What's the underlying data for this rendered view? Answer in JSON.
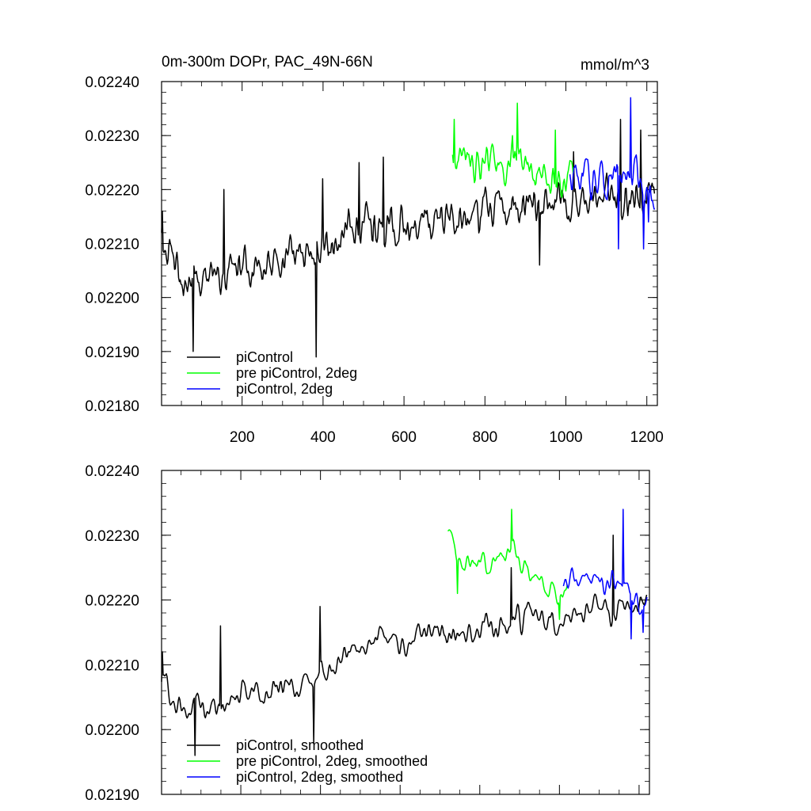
{
  "chart_data": [
    {
      "type": "line",
      "title": "0m-300m DOPr, PAC_49N-66N",
      "units": "mmol/m^3",
      "xlim": [
        1,
        1226
      ],
      "ylim": [
        0.0218,
        0.0224
      ],
      "xticks": [
        200,
        400,
        600,
        800,
        1000,
        1200
      ],
      "xtick_labels": [
        "200",
        "400",
        "600",
        "800",
        "1000",
        "1200"
      ],
      "yticks": [
        0.0218,
        0.0219,
        0.022,
        0.0221,
        0.0222,
        0.0223,
        0.0224
      ],
      "ytick_labels": [
        "0.02180",
        "0.02190",
        "0.02200",
        "0.02210",
        "0.02220",
        "0.02230",
        "0.02240"
      ],
      "legend": [
        "piControl",
        "pre piControl, 2deg",
        "piControl, 2deg"
      ],
      "legend_position": "bottom-left",
      "series": [
        {
          "name": "piControl",
          "color": "#000000",
          "x": [
            1,
            50,
            100,
            150,
            200,
            250,
            300,
            350,
            400,
            450,
            500,
            550,
            600,
            650,
            700,
            750,
            800,
            850,
            900,
            950,
            1000,
            1050,
            1100,
            1150,
            1200,
            1220
          ],
          "values": [
            0.02212,
            0.02202,
            0.02204,
            0.02203,
            0.02206,
            0.02205,
            0.02207,
            0.02207,
            0.02209,
            0.02211,
            0.02213,
            0.02214,
            0.02213,
            0.02215,
            0.02215,
            0.02214,
            0.02216,
            0.02216,
            0.02217,
            0.02218,
            0.02217,
            0.02218,
            0.02219,
            0.02218,
            0.02219,
            0.0222
          ],
          "amplitude": 4.5e-05,
          "spikes": [
            [
              4,
              0.02216
            ],
            [
              80,
              0.0219
            ],
            [
              155,
              0.0222
            ],
            [
              383,
              0.02189
            ],
            [
              400,
              0.02222
            ],
            [
              490,
              0.02225
            ],
            [
              550,
              0.02226
            ],
            [
              935,
              0.02206
            ],
            [
              1020,
              0.02227
            ],
            [
              1135,
              0.02233
            ],
            [
              1185,
              0.02231
            ]
          ]
        },
        {
          "name": "pre piControl, 2deg",
          "color": "#00ff00",
          "x": [
            720,
            760,
            800,
            840,
            880,
            920,
            960,
            1000,
            1020
          ],
          "values": [
            0.02226,
            0.02225,
            0.02224,
            0.02224,
            0.02226,
            0.02224,
            0.02223,
            0.0222,
            0.02222
          ],
          "amplitude": 4e-05,
          "spikes": [
            [
              725,
              0.02233
            ],
            [
              880,
              0.02236
            ],
            [
              868,
              0.0223
            ],
            [
              975,
              0.02231
            ]
          ]
        },
        {
          "name": "piControl, 2deg",
          "color": "#0000ff",
          "x": [
            1010,
            1060,
            1110,
            1160,
            1200,
            1220
          ],
          "values": [
            0.02222,
            0.02222,
            0.02222,
            0.02223,
            0.02221,
            0.0222
          ],
          "amplitude": 4e-05,
          "spikes": [
            [
              1160,
              0.02237
            ],
            [
              1130,
              0.02209
            ],
            [
              1192,
              0.02209
            ],
            [
              1205,
              0.02214
            ]
          ]
        }
      ]
    },
    {
      "type": "line",
      "title": "",
      "units": "",
      "xlim": [
        1,
        1226
      ],
      "ylim": [
        0.0219,
        0.0224
      ],
      "xticks": [
        200,
        400,
        600,
        800,
        1000,
        1200
      ],
      "xtick_labels": [],
      "yticks": [
        0.0219,
        0.022,
        0.0221,
        0.0222,
        0.0223,
        0.0224
      ],
      "ytick_labels": [
        "0.02190",
        "0.02200",
        "0.02210",
        "0.02220",
        "0.02230",
        "0.02240"
      ],
      "legend": [
        "piControl, smoothed",
        "pre piControl, 2deg, smoothed",
        "piControl, 2deg, smoothed"
      ],
      "legend_position": "bottom-left",
      "series": [
        {
          "name": "piControl, smoothed",
          "color": "#000000",
          "x": [
            1,
            50,
            100,
            150,
            200,
            250,
            300,
            350,
            400,
            450,
            500,
            550,
            600,
            650,
            700,
            750,
            800,
            850,
            900,
            950,
            1000,
            1050,
            1100,
            1150,
            1200,
            1220
          ],
          "values": [
            0.02208,
            0.02203,
            0.02204,
            0.02203,
            0.02206,
            0.02205,
            0.02207,
            0.02207,
            0.02209,
            0.02211,
            0.02213,
            0.02214,
            0.02213,
            0.02215,
            0.02215,
            0.02214,
            0.02216,
            0.02216,
            0.02217,
            0.02218,
            0.02217,
            0.02218,
            0.02219,
            0.02218,
            0.02219,
            0.0222
          ],
          "amplitude": 3e-05,
          "spikes": [
            [
              4,
              0.02212
            ],
            [
              85,
              0.02196
            ],
            [
              150,
              0.02216
            ],
            [
              383,
              0.02198
            ],
            [
              400,
              0.02219
            ],
            [
              880,
              0.02225
            ],
            [
              1135,
              0.0223
            ]
          ]
        },
        {
          "name": "pre piControl, 2deg, smoothed",
          "color": "#00ff00",
          "x": [
            720,
            760,
            800,
            840,
            880,
            920,
            960,
            1000,
            1020
          ],
          "values": [
            0.02231,
            0.02225,
            0.02226,
            0.02225,
            0.02228,
            0.02224,
            0.02223,
            0.0222,
            0.02222
          ],
          "amplitude": 2.5e-05,
          "spikes": [
            [
              745,
              0.02221
            ],
            [
              880,
              0.02234
            ],
            [
              1000,
              0.02217
            ]
          ]
        },
        {
          "name": "piControl, 2deg, smoothed",
          "color": "#0000ff",
          "x": [
            1010,
            1060,
            1110,
            1160,
            1200,
            1220
          ],
          "values": [
            0.02222,
            0.02224,
            0.02222,
            0.02224,
            0.02218,
            0.0222
          ],
          "amplitude": 2.5e-05,
          "spikes": [
            [
              1160,
              0.02234
            ],
            [
              1180,
              0.02214
            ],
            [
              1210,
              0.02215
            ]
          ]
        }
      ]
    }
  ]
}
